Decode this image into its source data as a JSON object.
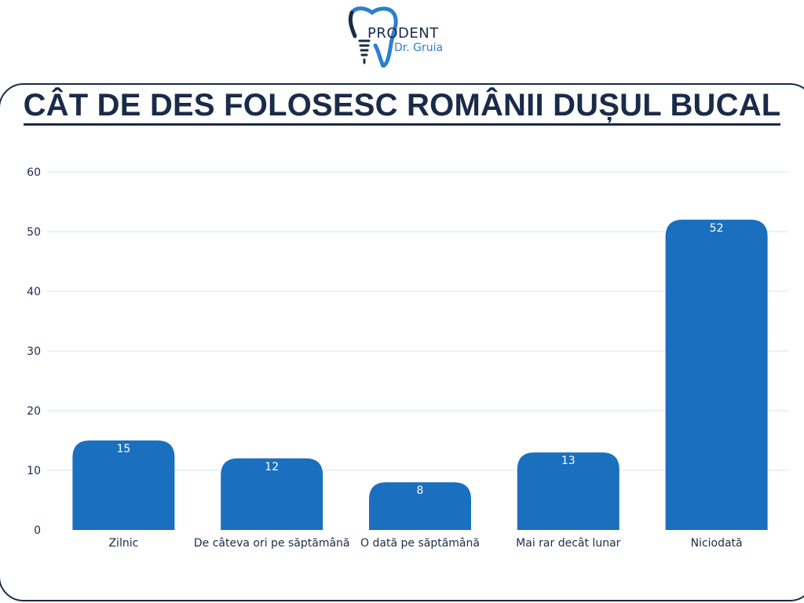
{
  "brand": {
    "name": "PRODENT",
    "subtitle": "Dr. Gruia"
  },
  "colors": {
    "bar": "#1a6fbf",
    "title": "#1a2b4a",
    "grid": "#d6e6f2"
  },
  "chart_data": {
    "type": "bar",
    "title": "CÂT DE DES FOLOSESC ROMÂNII DUȘUL BUCAL",
    "categories": [
      "Zilnic",
      "De câteva ori pe săptămână",
      "O dată pe săptămână",
      "Mai rar decât lunar",
      "Niciodată"
    ],
    "values": [
      15,
      12,
      8,
      13,
      52
    ],
    "ylim": [
      0,
      60
    ],
    "yticks": [
      0,
      10,
      20,
      30,
      40,
      50,
      60
    ],
    "grid": true,
    "xlabel": "",
    "ylabel": ""
  }
}
